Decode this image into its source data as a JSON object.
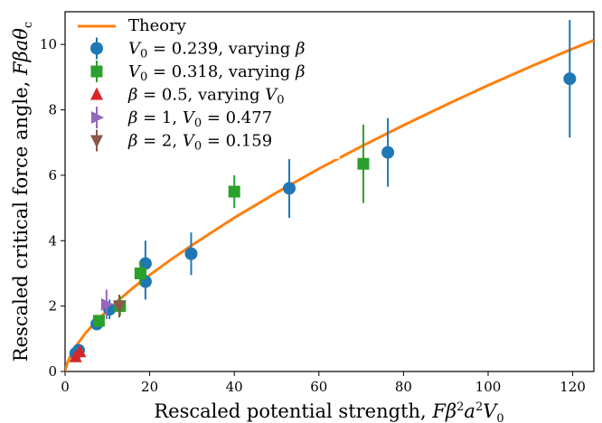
{
  "chart_data": {
    "type": "scatter",
    "xlabel": "Rescaled potential strength, Fβ²a²V₀",
    "ylabel": "Rescaled critical force angle, Fβaθc",
    "xlim": [
      0,
      125
    ],
    "ylim": [
      0,
      11
    ],
    "xticks": [
      0,
      20,
      40,
      60,
      80,
      100,
      120
    ],
    "yticks": [
      0,
      2,
      4,
      6,
      8,
      10
    ],
    "grid": false,
    "legend_placement": "top-left",
    "colors": {
      "theory": "#ff7f0e",
      "series_blue": "#1f77b4",
      "series_green": "#2ca02c",
      "series_red": "#d62728",
      "series_purple": "#9467bd",
      "series_brown": "#8c564b"
    },
    "theory": {
      "name": "Theory",
      "x": [
        0,
        0.5,
        1,
        2,
        3,
        5,
        7.5,
        10,
        13,
        16,
        20,
        25,
        30,
        40,
        50,
        60,
        70,
        80,
        90,
        100,
        110,
        120,
        125
      ],
      "y": [
        0,
        0.25,
        0.4,
        0.64,
        0.85,
        1.2,
        1.55,
        1.87,
        2.22,
        2.55,
        2.95,
        3.42,
        3.86,
        4.7,
        5.47,
        6.2,
        6.88,
        7.53,
        8.15,
        8.75,
        9.32,
        9.87,
        10.13
      ]
    },
    "series": [
      {
        "name": "V0 = 0.239, varying β",
        "marker": "circle",
        "points": [
          {
            "x": 2.5,
            "y": 0.55,
            "err": 0.1
          },
          {
            "x": 3.2,
            "y": 0.65,
            "err": 0.1
          },
          {
            "x": 7.5,
            "y": 1.45,
            "err": 0.15
          },
          {
            "x": 10.5,
            "y": 1.9,
            "err": 0.3
          },
          {
            "x": 19.0,
            "y": 2.75,
            "err": 0.55
          },
          {
            "x": 19.0,
            "y": 3.3,
            "err": 0.7
          },
          {
            "x": 29.8,
            "y": 3.6,
            "err": 0.65
          },
          {
            "x": 53.0,
            "y": 5.6,
            "err": 0.9
          },
          {
            "x": 76.3,
            "y": 6.7,
            "err": 1.05
          },
          {
            "x": 119.3,
            "y": 8.95,
            "err": 1.8
          }
        ]
      },
      {
        "name": "V0 = 0.318, varying β",
        "marker": "square",
        "points": [
          {
            "x": 8.0,
            "y": 1.55,
            "err": 0.15
          },
          {
            "x": 13.0,
            "y": 2.0,
            "err": 0.3
          },
          {
            "x": 17.8,
            "y": 3.0,
            "err": 0.35
          },
          {
            "x": 40.0,
            "y": 5.5,
            "err": 0.5
          },
          {
            "x": 70.5,
            "y": 6.35,
            "err": 1.2
          }
        ]
      },
      {
        "name": "β = 0.5, varying V0",
        "marker": "triangle-up",
        "points": [
          {
            "x": 2.5,
            "y": 0.45,
            "err": 0
          },
          {
            "x": 3.5,
            "y": 0.6,
            "err": 0
          }
        ]
      },
      {
        "name": "β = 1, V0 = 0.477",
        "marker": "triangle-right",
        "points": [
          {
            "x": 9.8,
            "y": 2.05,
            "err": 0.45
          }
        ]
      },
      {
        "name": "β = 2, V0 = 0.159",
        "marker": "triangle-down",
        "points": [
          {
            "x": 12.8,
            "y": 2.0,
            "err": 0.35
          }
        ]
      }
    ]
  }
}
